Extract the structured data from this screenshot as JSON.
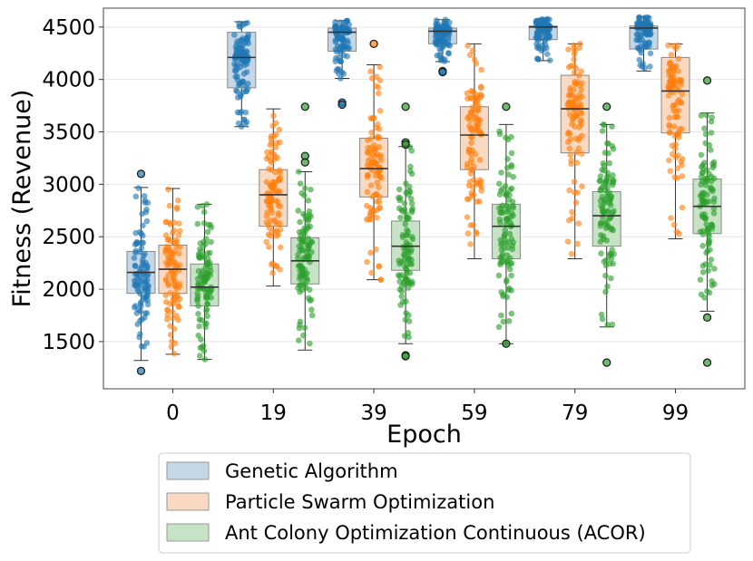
{
  "chart_data": {
    "type": "box",
    "xlabel": "Epoch",
    "ylabel": "Fitness (Revenue)",
    "categories": [
      "0",
      "19",
      "39",
      "59",
      "79",
      "99"
    ],
    "ylim": [
      1050,
      4680
    ],
    "yticks": [
      1500,
      2000,
      2500,
      3000,
      3500,
      4000,
      4500
    ],
    "grid": "horizontal",
    "legend_position": "bottom-outside",
    "series": [
      {
        "name": "Genetic Algorithm",
        "color": "#1f77b4",
        "boxes": [
          {
            "q1": 1960,
            "median": 2160,
            "q3": 2360,
            "whisker_low": 1320,
            "whisker_high": 2970,
            "outliers": [
              3100,
              1220
            ],
            "max": 3100,
            "min": 1220
          },
          {
            "q1": 3920,
            "median": 4210,
            "q3": 4450,
            "whisker_low": 3550,
            "whisker_high": 4550,
            "outliers": [],
            "max": 4550,
            "min": 3550
          },
          {
            "q1": 4270,
            "median": 4450,
            "q3": 4490,
            "whisker_low": 4010,
            "whisker_high": 4560,
            "outliers": [
              3780,
              3760
            ],
            "max": 4560,
            "min": 3760
          },
          {
            "q1": 4340,
            "median": 4460,
            "q3": 4490,
            "whisker_low": 4170,
            "whisker_high": 4570,
            "outliers": [
              4080,
              4070
            ],
            "max": 4570,
            "min": 4070
          },
          {
            "q1": 4380,
            "median": 4500,
            "q3": 4510,
            "whisker_low": 4180,
            "whisker_high": 4580,
            "outliers": [],
            "max": 4580,
            "min": 4180
          },
          {
            "q1": 4290,
            "median": 4490,
            "q3": 4510,
            "whisker_low": 4080,
            "whisker_high": 4600,
            "outliers": [],
            "max": 4600,
            "min": 4080
          }
        ]
      },
      {
        "name": "Particle Swarm Optimization",
        "color": "#ff7f0e",
        "boxes": [
          {
            "q1": 1960,
            "median": 2190,
            "q3": 2420,
            "whisker_low": 1380,
            "whisker_high": 2960,
            "outliers": [],
            "max": 2960,
            "min": 1380
          },
          {
            "q1": 2600,
            "median": 2900,
            "q3": 3140,
            "whisker_low": 2030,
            "whisker_high": 3720,
            "outliers": [],
            "max": 3720,
            "min": 2030
          },
          {
            "q1": 2880,
            "median": 3150,
            "q3": 3440,
            "whisker_low": 2090,
            "whisker_high": 4140,
            "outliers": [
              4340
            ],
            "max": 4340,
            "min": 2090
          },
          {
            "q1": 3140,
            "median": 3470,
            "q3": 3740,
            "whisker_low": 2290,
            "whisker_high": 4340,
            "outliers": [],
            "max": 4340,
            "min": 2290
          },
          {
            "q1": 3300,
            "median": 3720,
            "q3": 4040,
            "whisker_low": 2290,
            "whisker_high": 4340,
            "outliers": [],
            "max": 4340,
            "min": 2290
          },
          {
            "q1": 3490,
            "median": 3890,
            "q3": 4210,
            "whisker_low": 2480,
            "whisker_high": 4340,
            "outliers": [],
            "max": 4340,
            "min": 2480
          }
        ]
      },
      {
        "name": "Ant Colony Optimization Continuous (ACOR)",
        "color": "#2ca02c",
        "boxes": [
          {
            "q1": 1840,
            "median": 2020,
            "q3": 2240,
            "whisker_low": 1330,
            "whisker_high": 2810,
            "outliers": [],
            "max": 2810,
            "min": 1330
          },
          {
            "q1": 2050,
            "median": 2270,
            "q3": 2490,
            "whisker_low": 1420,
            "whisker_high": 3120,
            "outliers": [
              3270,
              3210,
              3740
            ],
            "max": 3740,
            "min": 1420
          },
          {
            "q1": 2180,
            "median": 2410,
            "q3": 2650,
            "whisker_low": 1480,
            "whisker_high": 3360,
            "outliers": [
              3400,
              3380,
              3740,
              1370,
              1360
            ],
            "max": 3740,
            "min": 1360
          },
          {
            "q1": 2290,
            "median": 2600,
            "q3": 2810,
            "whisker_low": 1480,
            "whisker_high": 3570,
            "outliers": [
              3740,
              1480
            ],
            "max": 3740,
            "min": 1480
          },
          {
            "q1": 2410,
            "median": 2700,
            "q3": 2930,
            "whisker_low": 1640,
            "whisker_high": 3570,
            "outliers": [
              3740,
              1300
            ],
            "max": 3740,
            "min": 1300
          },
          {
            "q1": 2530,
            "median": 2790,
            "q3": 3050,
            "whisker_low": 1790,
            "whisker_high": 3680,
            "outliers": [
              3990,
              1730,
              1300
            ],
            "max": 3990,
            "min": 1300
          }
        ]
      }
    ]
  }
}
